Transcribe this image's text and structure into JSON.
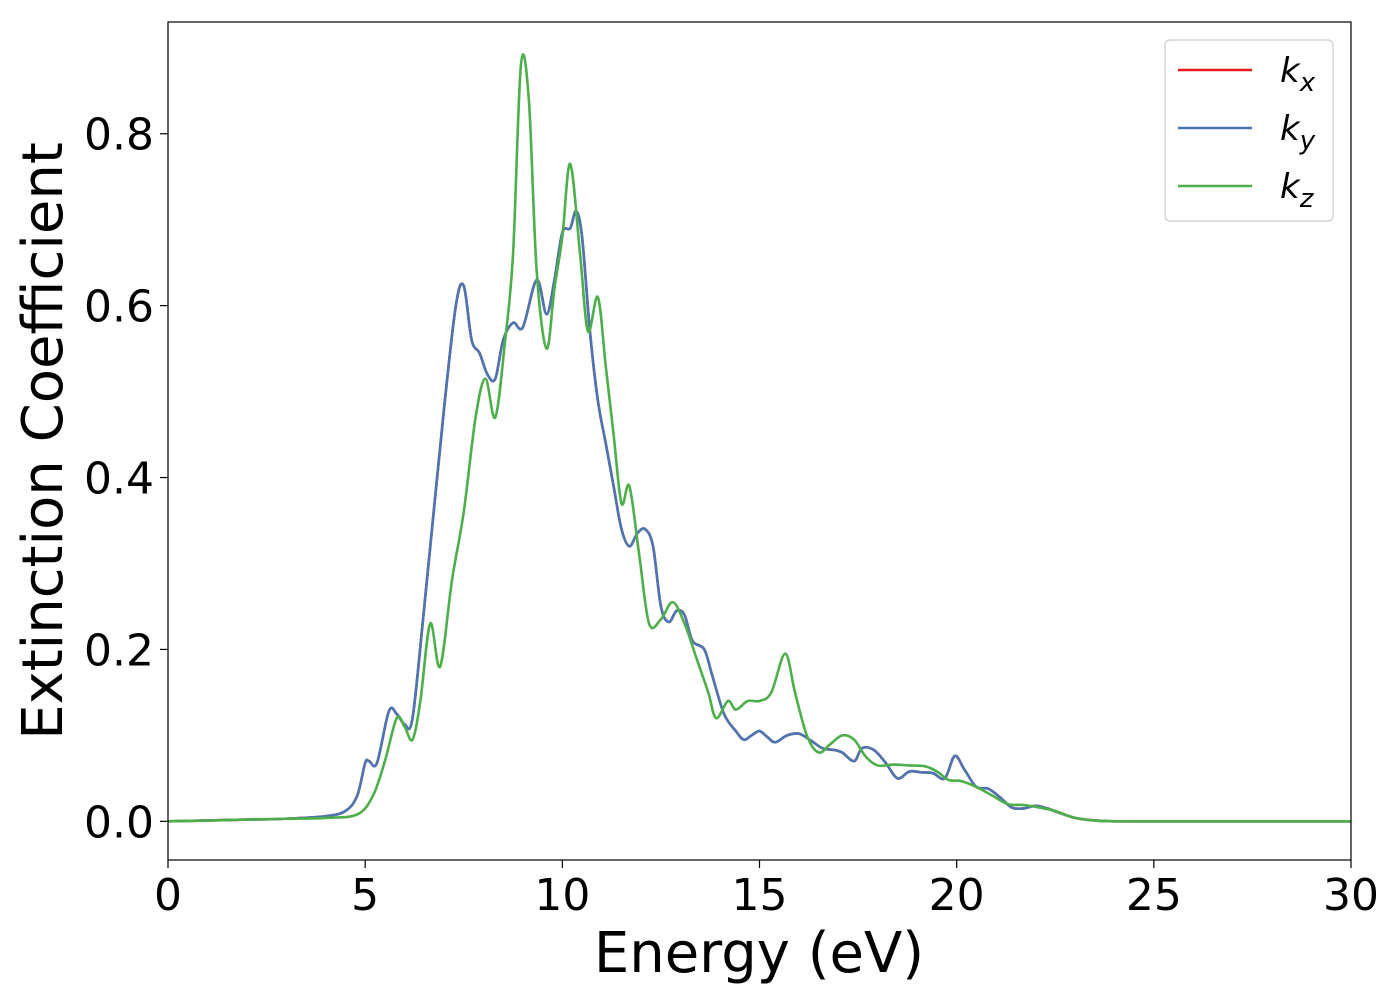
{
  "chart_data": {
    "type": "line",
    "title": "",
    "xlabel": "Energy (eV)",
    "ylabel": "Extinction Coefficient",
    "xlim": [
      0,
      30
    ],
    "ylim": [
      -0.045,
      0.93
    ],
    "xticks": [
      0,
      5,
      10,
      15,
      20,
      25,
      30
    ],
    "yticks": [
      0.0,
      0.2,
      0.4,
      0.6,
      0.8
    ],
    "xtick_labels": [
      "0",
      "5",
      "10",
      "15",
      "20",
      "25",
      "30"
    ],
    "ytick_labels": [
      "0.0",
      "0.2",
      "0.4",
      "0.6",
      "0.8"
    ],
    "grid": false,
    "legend_position": "top-right",
    "series": [
      {
        "name": "k_x",
        "label_base": "k",
        "label_sub": "x",
        "color": "#e41a1c",
        "x": [
          0,
          2,
          3,
          4,
          4.5,
          4.8,
          5.0,
          5.1,
          5.3,
          5.6,
          5.8,
          6.0,
          6.2,
          6.5,
          7.0,
          7.3,
          7.5,
          7.7,
          7.9,
          8.1,
          8.3,
          8.5,
          8.75,
          9.0,
          9.35,
          9.6,
          9.8,
          10.0,
          10.2,
          10.35,
          10.5,
          10.7,
          10.9,
          11.1,
          11.3,
          11.5,
          11.7,
          11.9,
          12.1,
          12.3,
          12.5,
          12.7,
          12.9,
          13.1,
          13.3,
          13.6,
          13.8,
          14.1,
          14.4,
          14.6,
          14.8,
          15.0,
          15.2,
          15.4,
          15.7,
          16.0,
          16.3,
          16.6,
          16.9,
          17.1,
          17.4,
          17.6,
          17.9,
          18.2,
          18.5,
          18.8,
          19.1,
          19.4,
          19.7,
          19.95,
          20.2,
          20.5,
          20.8,
          21.1,
          21.4,
          21.7,
          22.0,
          22.3,
          22.6,
          23.0,
          23.5,
          24.0,
          25.0,
          30.0
        ],
        "y": [
          0.0,
          0.002,
          0.003,
          0.006,
          0.012,
          0.03,
          0.068,
          0.07,
          0.068,
          0.128,
          0.125,
          0.113,
          0.12,
          0.25,
          0.48,
          0.6,
          0.623,
          0.56,
          0.545,
          0.52,
          0.515,
          0.56,
          0.58,
          0.575,
          0.63,
          0.59,
          0.63,
          0.685,
          0.69,
          0.71,
          0.68,
          0.57,
          0.49,
          0.44,
          0.39,
          0.34,
          0.32,
          0.335,
          0.34,
          0.32,
          0.25,
          0.232,
          0.245,
          0.24,
          0.21,
          0.2,
          0.17,
          0.125,
          0.105,
          0.095,
          0.1,
          0.105,
          0.098,
          0.092,
          0.1,
          0.102,
          0.094,
          0.085,
          0.083,
          0.08,
          0.07,
          0.085,
          0.083,
          0.068,
          0.05,
          0.058,
          0.057,
          0.056,
          0.05,
          0.076,
          0.06,
          0.04,
          0.038,
          0.028,
          0.016,
          0.015,
          0.018,
          0.015,
          0.01,
          0.004,
          0.001,
          0.0,
          0.0,
          0.0
        ]
      },
      {
        "name": "k_y",
        "label_base": "k",
        "label_sub": "y",
        "color": "#4a77b4",
        "x": [
          0,
          2,
          3,
          4,
          4.5,
          4.8,
          5.0,
          5.1,
          5.3,
          5.6,
          5.8,
          6.0,
          6.2,
          6.5,
          7.0,
          7.3,
          7.5,
          7.7,
          7.9,
          8.1,
          8.3,
          8.5,
          8.75,
          9.0,
          9.35,
          9.6,
          9.8,
          10.0,
          10.2,
          10.35,
          10.5,
          10.7,
          10.9,
          11.1,
          11.3,
          11.5,
          11.7,
          11.9,
          12.1,
          12.3,
          12.5,
          12.7,
          12.9,
          13.1,
          13.3,
          13.6,
          13.8,
          14.1,
          14.4,
          14.6,
          14.8,
          15.0,
          15.2,
          15.4,
          15.7,
          16.0,
          16.3,
          16.6,
          16.9,
          17.1,
          17.4,
          17.6,
          17.9,
          18.2,
          18.5,
          18.8,
          19.1,
          19.4,
          19.7,
          19.95,
          20.2,
          20.5,
          20.8,
          21.1,
          21.4,
          21.7,
          22.0,
          22.3,
          22.6,
          23.0,
          23.5,
          24.0,
          25.0,
          30.0
        ],
        "y": [
          0.0,
          0.002,
          0.003,
          0.006,
          0.012,
          0.03,
          0.068,
          0.07,
          0.068,
          0.128,
          0.125,
          0.113,
          0.12,
          0.25,
          0.48,
          0.6,
          0.623,
          0.56,
          0.545,
          0.52,
          0.515,
          0.56,
          0.58,
          0.575,
          0.63,
          0.59,
          0.63,
          0.685,
          0.69,
          0.71,
          0.68,
          0.57,
          0.49,
          0.44,
          0.39,
          0.34,
          0.32,
          0.335,
          0.34,
          0.32,
          0.25,
          0.232,
          0.245,
          0.24,
          0.21,
          0.2,
          0.17,
          0.125,
          0.105,
          0.095,
          0.1,
          0.105,
          0.098,
          0.092,
          0.1,
          0.102,
          0.094,
          0.085,
          0.083,
          0.08,
          0.07,
          0.085,
          0.083,
          0.068,
          0.05,
          0.058,
          0.057,
          0.056,
          0.05,
          0.076,
          0.06,
          0.04,
          0.038,
          0.028,
          0.016,
          0.015,
          0.018,
          0.015,
          0.01,
          0.004,
          0.001,
          0.0,
          0.0,
          0.0
        ]
      },
      {
        "name": "k_z",
        "label_base": "k",
        "label_sub": "z",
        "color": "#4daf4a",
        "x": [
          0,
          2,
          3,
          4,
          4.8,
          5.2,
          5.5,
          5.8,
          6.0,
          6.2,
          6.4,
          6.65,
          6.9,
          7.2,
          7.5,
          7.8,
          8.05,
          8.3,
          8.55,
          8.75,
          8.95,
          9.15,
          9.35,
          9.6,
          9.8,
          10.0,
          10.2,
          10.45,
          10.65,
          10.9,
          11.1,
          11.3,
          11.5,
          11.7,
          11.95,
          12.2,
          12.5,
          12.8,
          13.1,
          13.4,
          13.7,
          13.9,
          14.2,
          14.4,
          14.7,
          15.0,
          15.3,
          15.65,
          15.9,
          16.2,
          16.5,
          16.8,
          17.1,
          17.4,
          17.7,
          18.0,
          18.4,
          18.8,
          19.2,
          19.5,
          19.8,
          20.1,
          20.5,
          20.9,
          21.3,
          21.7,
          22.1,
          22.5,
          23.0,
          23.5,
          24.0,
          25.0,
          30.0
        ],
        "y": [
          0.0,
          0.002,
          0.003,
          0.004,
          0.008,
          0.03,
          0.07,
          0.12,
          0.11,
          0.095,
          0.14,
          0.23,
          0.18,
          0.28,
          0.36,
          0.47,
          0.515,
          0.47,
          0.56,
          0.66,
          0.88,
          0.84,
          0.64,
          0.55,
          0.62,
          0.68,
          0.765,
          0.66,
          0.57,
          0.61,
          0.53,
          0.45,
          0.37,
          0.39,
          0.31,
          0.23,
          0.235,
          0.255,
          0.23,
          0.19,
          0.15,
          0.12,
          0.14,
          0.13,
          0.14,
          0.14,
          0.15,
          0.195,
          0.15,
          0.1,
          0.08,
          0.09,
          0.1,
          0.095,
          0.075,
          0.065,
          0.066,
          0.065,
          0.064,
          0.058,
          0.048,
          0.047,
          0.04,
          0.03,
          0.02,
          0.019,
          0.016,
          0.012,
          0.004,
          0.001,
          0.0,
          0.0,
          0.0
        ]
      }
    ]
  }
}
